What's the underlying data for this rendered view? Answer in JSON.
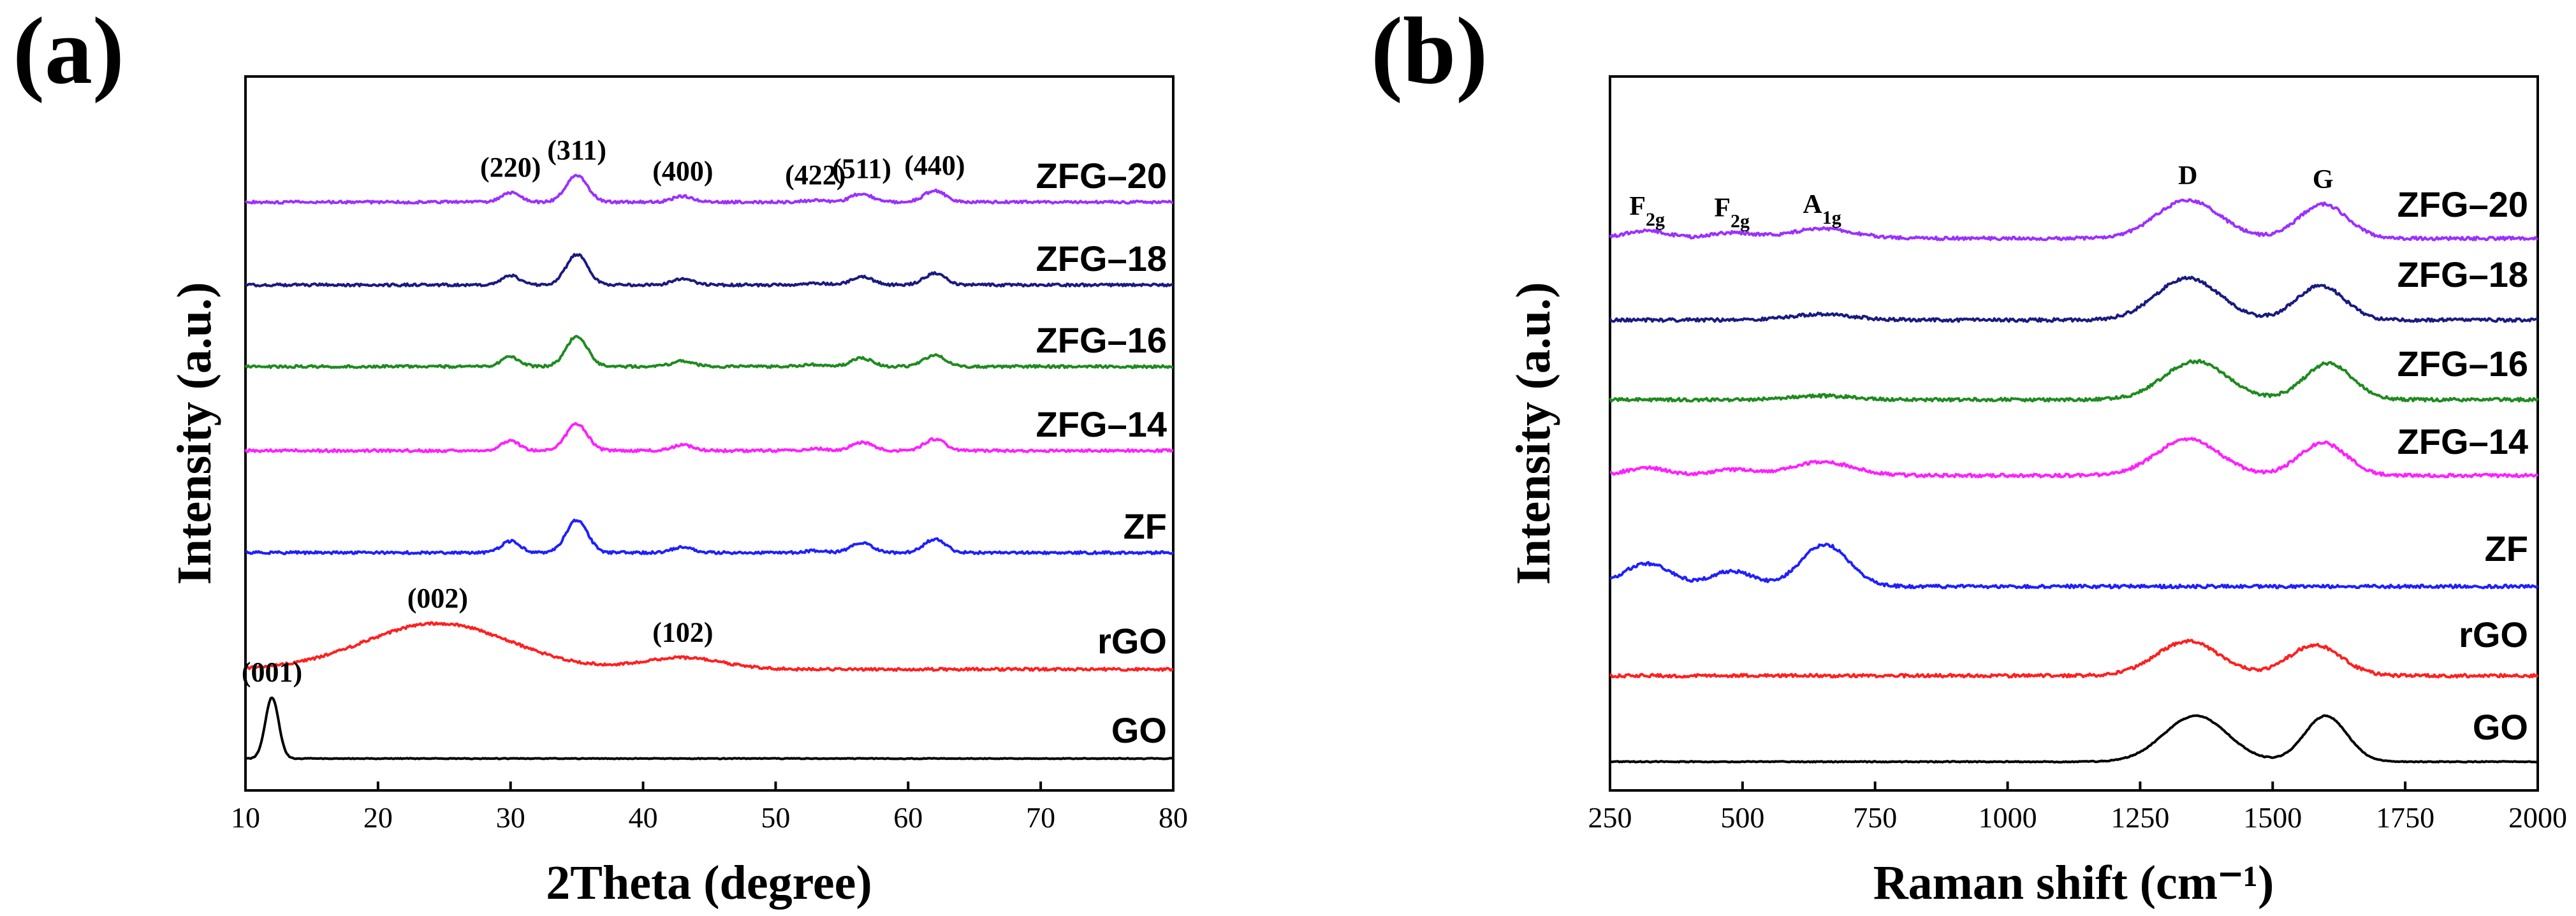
{
  "figure_labels": {
    "a": "(a)",
    "b": "(b)"
  },
  "colors": {
    "ZFG-20": "#9b30ff",
    "ZFG-18": "#1a1a80",
    "ZFG-16": "#1f8a1f",
    "ZFG-14": "#ff1fff",
    "ZF": "#1f1fff",
    "rGO": "#ff1f1f",
    "GO": "#000000"
  },
  "chart_data": [
    {
      "type": "line",
      "panel": "(a)",
      "xlabel": "2Theta (degree)",
      "ylabel": "Intensity (a.u.)",
      "xlim": [
        10,
        80
      ],
      "xticks": [
        10,
        20,
        30,
        40,
        50,
        60,
        70,
        80
      ],
      "xtick_labels": [
        "10",
        "20",
        "30",
        "40",
        "50",
        "60",
        "70",
        "80"
      ],
      "y_ticks": "none",
      "offset_stacked": true,
      "series": [
        {
          "name": "ZFG–20",
          "baseline": 0.05,
          "peaks": [
            [
              30,
              0.25,
              0.7
            ],
            [
              35,
              0.7,
              0.8
            ],
            [
              43,
              0.15,
              0.8
            ],
            [
              53,
              0.05,
              0.8
            ],
            [
              56.5,
              0.22,
              0.8
            ],
            [
              62,
              0.3,
              0.8
            ]
          ]
        },
        {
          "name": "ZFG–18",
          "baseline": 0.05,
          "peaks": [
            [
              30,
              0.25,
              0.7
            ],
            [
              35,
              0.8,
              0.8
            ],
            [
              43,
              0.15,
              0.8
            ],
            [
              53,
              0.05,
              0.8
            ],
            [
              56.5,
              0.22,
              0.8
            ],
            [
              62,
              0.3,
              0.8
            ]
          ]
        },
        {
          "name": "ZFG–16",
          "baseline": 0.05,
          "peaks": [
            [
              30,
              0.25,
              0.7
            ],
            [
              35,
              0.8,
              0.8
            ],
            [
              43,
              0.15,
              0.8
            ],
            [
              53,
              0.05,
              0.8
            ],
            [
              56.5,
              0.22,
              0.8
            ],
            [
              62,
              0.3,
              0.8
            ]
          ]
        },
        {
          "name": "ZFG–14",
          "baseline": 0.05,
          "peaks": [
            [
              30,
              0.25,
              0.7
            ],
            [
              35,
              0.7,
              0.8
            ],
            [
              43,
              0.15,
              0.8
            ],
            [
              53,
              0.05,
              0.8
            ],
            [
              56.5,
              0.22,
              0.8
            ],
            [
              62,
              0.3,
              0.8
            ]
          ]
        },
        {
          "name": "ZF",
          "baseline": 0.05,
          "peaks": [
            [
              30,
              0.3,
              0.7
            ],
            [
              35,
              0.85,
              0.8
            ],
            [
              43,
              0.15,
              0.8
            ],
            [
              53,
              0.05,
              0.8
            ],
            [
              56.5,
              0.25,
              0.8
            ],
            [
              62,
              0.35,
              0.8
            ]
          ]
        },
        {
          "name": "rGO",
          "baseline": 0.0,
          "peaks": [
            [
              24.5,
              1.2,
              5.5
            ],
            [
              43,
              0.3,
              3.0
            ]
          ]
        },
        {
          "name": "GO",
          "baseline": 0.0,
          "peaks": [
            [
              12,
              1.6,
              0.5
            ]
          ]
        }
      ],
      "annotations": [
        {
          "text": "(220)",
          "x": 30,
          "series": "ZFG–20"
        },
        {
          "text": "(311)",
          "x": 35,
          "series": "ZFG–20"
        },
        {
          "text": "(400)",
          "x": 43,
          "series": "ZFG–20"
        },
        {
          "text": "(422)",
          "x": 53,
          "series": "ZFG–20"
        },
        {
          "text": "(511)",
          "x": 56.5,
          "series": "ZFG–20"
        },
        {
          "text": "(440)",
          "x": 62,
          "series": "ZFG–20"
        },
        {
          "text": "(002)",
          "x": 24.5,
          "series": "rGO"
        },
        {
          "text": "(102)",
          "x": 43,
          "series": "rGO"
        },
        {
          "text": "(001)",
          "x": 12,
          "series": "GO"
        }
      ]
    },
    {
      "type": "line",
      "panel": "(b)",
      "xlabel": "Raman shift (cm⁻¹)",
      "ylabel": "Intensity (a.u.)",
      "xlim": [
        250,
        2000
      ],
      "xticks": [
        250,
        500,
        750,
        1000,
        1250,
        1500,
        1750,
        2000
      ],
      "xtick_labels": [
        "250",
        "500",
        "750",
        "1000",
        "1250",
        "1500",
        "1750",
        "2000"
      ],
      "y_ticks": "none",
      "offset_stacked": true,
      "series": [
        {
          "name": "ZFG–20",
          "baseline": 0.1,
          "peaks": [
            [
              320,
              0.2,
              40
            ],
            [
              480,
              0.15,
              40
            ],
            [
              650,
              0.25,
              60
            ],
            [
              1340,
              1.0,
              60
            ],
            [
              1595,
              0.9,
              45
            ]
          ]
        },
        {
          "name": "ZFG–18",
          "baseline": 0.05,
          "peaks": [
            [
              650,
              0.15,
              60
            ],
            [
              1340,
              1.1,
              60
            ],
            [
              1590,
              0.9,
              45
            ]
          ]
        },
        {
          "name": "ZFG–16",
          "baseline": 0.05,
          "peaks": [
            [
              650,
              0.1,
              60
            ],
            [
              1355,
              1.0,
              60
            ],
            [
              1605,
              0.95,
              45
            ]
          ]
        },
        {
          "name": "ZFG–14",
          "baseline": 0.1,
          "peaks": [
            [
              320,
              0.2,
              40
            ],
            [
              480,
              0.15,
              40
            ],
            [
              650,
              0.35,
              60
            ],
            [
              1340,
              0.95,
              60
            ],
            [
              1595,
              0.85,
              45
            ]
          ]
        },
        {
          "name": "ZF",
          "baseline": 0.0,
          "peaks": [
            [
              320,
              0.6,
              45
            ],
            [
              480,
              0.4,
              40
            ],
            [
              655,
              1.1,
              45
            ]
          ]
        },
        {
          "name": "rGO",
          "baseline": 0.0,
          "peaks": [
            [
              1340,
              0.9,
              60
            ],
            [
              1580,
              0.8,
              50
            ]
          ]
        },
        {
          "name": "GO",
          "baseline": 0.0,
          "peaks": [
            [
              1355,
              1.2,
              60
            ],
            [
              1600,
              1.2,
              40
            ]
          ]
        }
      ],
      "annotations": [
        {
          "text": "F",
          "sub": "2g",
          "x": 320
        },
        {
          "text": "F",
          "sub": "2g",
          "x": 480
        },
        {
          "text": "A",
          "sub": "1g",
          "x": 650
        },
        {
          "text": "D",
          "x": 1340
        },
        {
          "text": "G",
          "x": 1595
        }
      ]
    }
  ]
}
